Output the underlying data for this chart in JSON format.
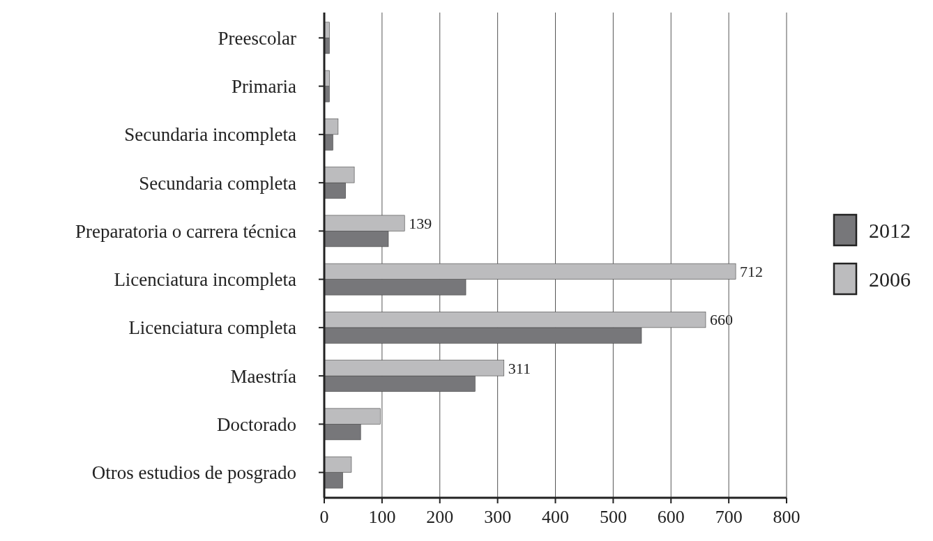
{
  "chart_data": {
    "type": "bar",
    "orientation": "horizontal",
    "categories": [
      "Preescolar",
      "Primaria",
      "Secundaria incompleta",
      "Secundaria completa",
      "Preparatoria o carrera técnica",
      "Licenciatura incompleta",
      "Licenciatura completa",
      "Maestría",
      "Doctorado",
      "Otros estudios de posgrado"
    ],
    "series": [
      {
        "name": "2012",
        "color": "#77777a",
        "values": [
          9,
          9,
          15,
          37,
          111,
          245,
          549,
          261,
          63,
          32
        ]
      },
      {
        "name": "2006",
        "color": "#bcbcbe",
        "values": [
          9,
          9,
          24,
          52,
          139,
          712,
          660,
          311,
          97,
          47
        ],
        "value_labels": [
          null,
          null,
          null,
          null,
          "139",
          "712",
          "660",
          "311",
          null,
          null
        ]
      }
    ],
    "xlim": [
      0,
      800
    ],
    "xticks": [
      0,
      100,
      200,
      300,
      400,
      500,
      600,
      700,
      800
    ],
    "grid": "x",
    "legend": "right"
  }
}
